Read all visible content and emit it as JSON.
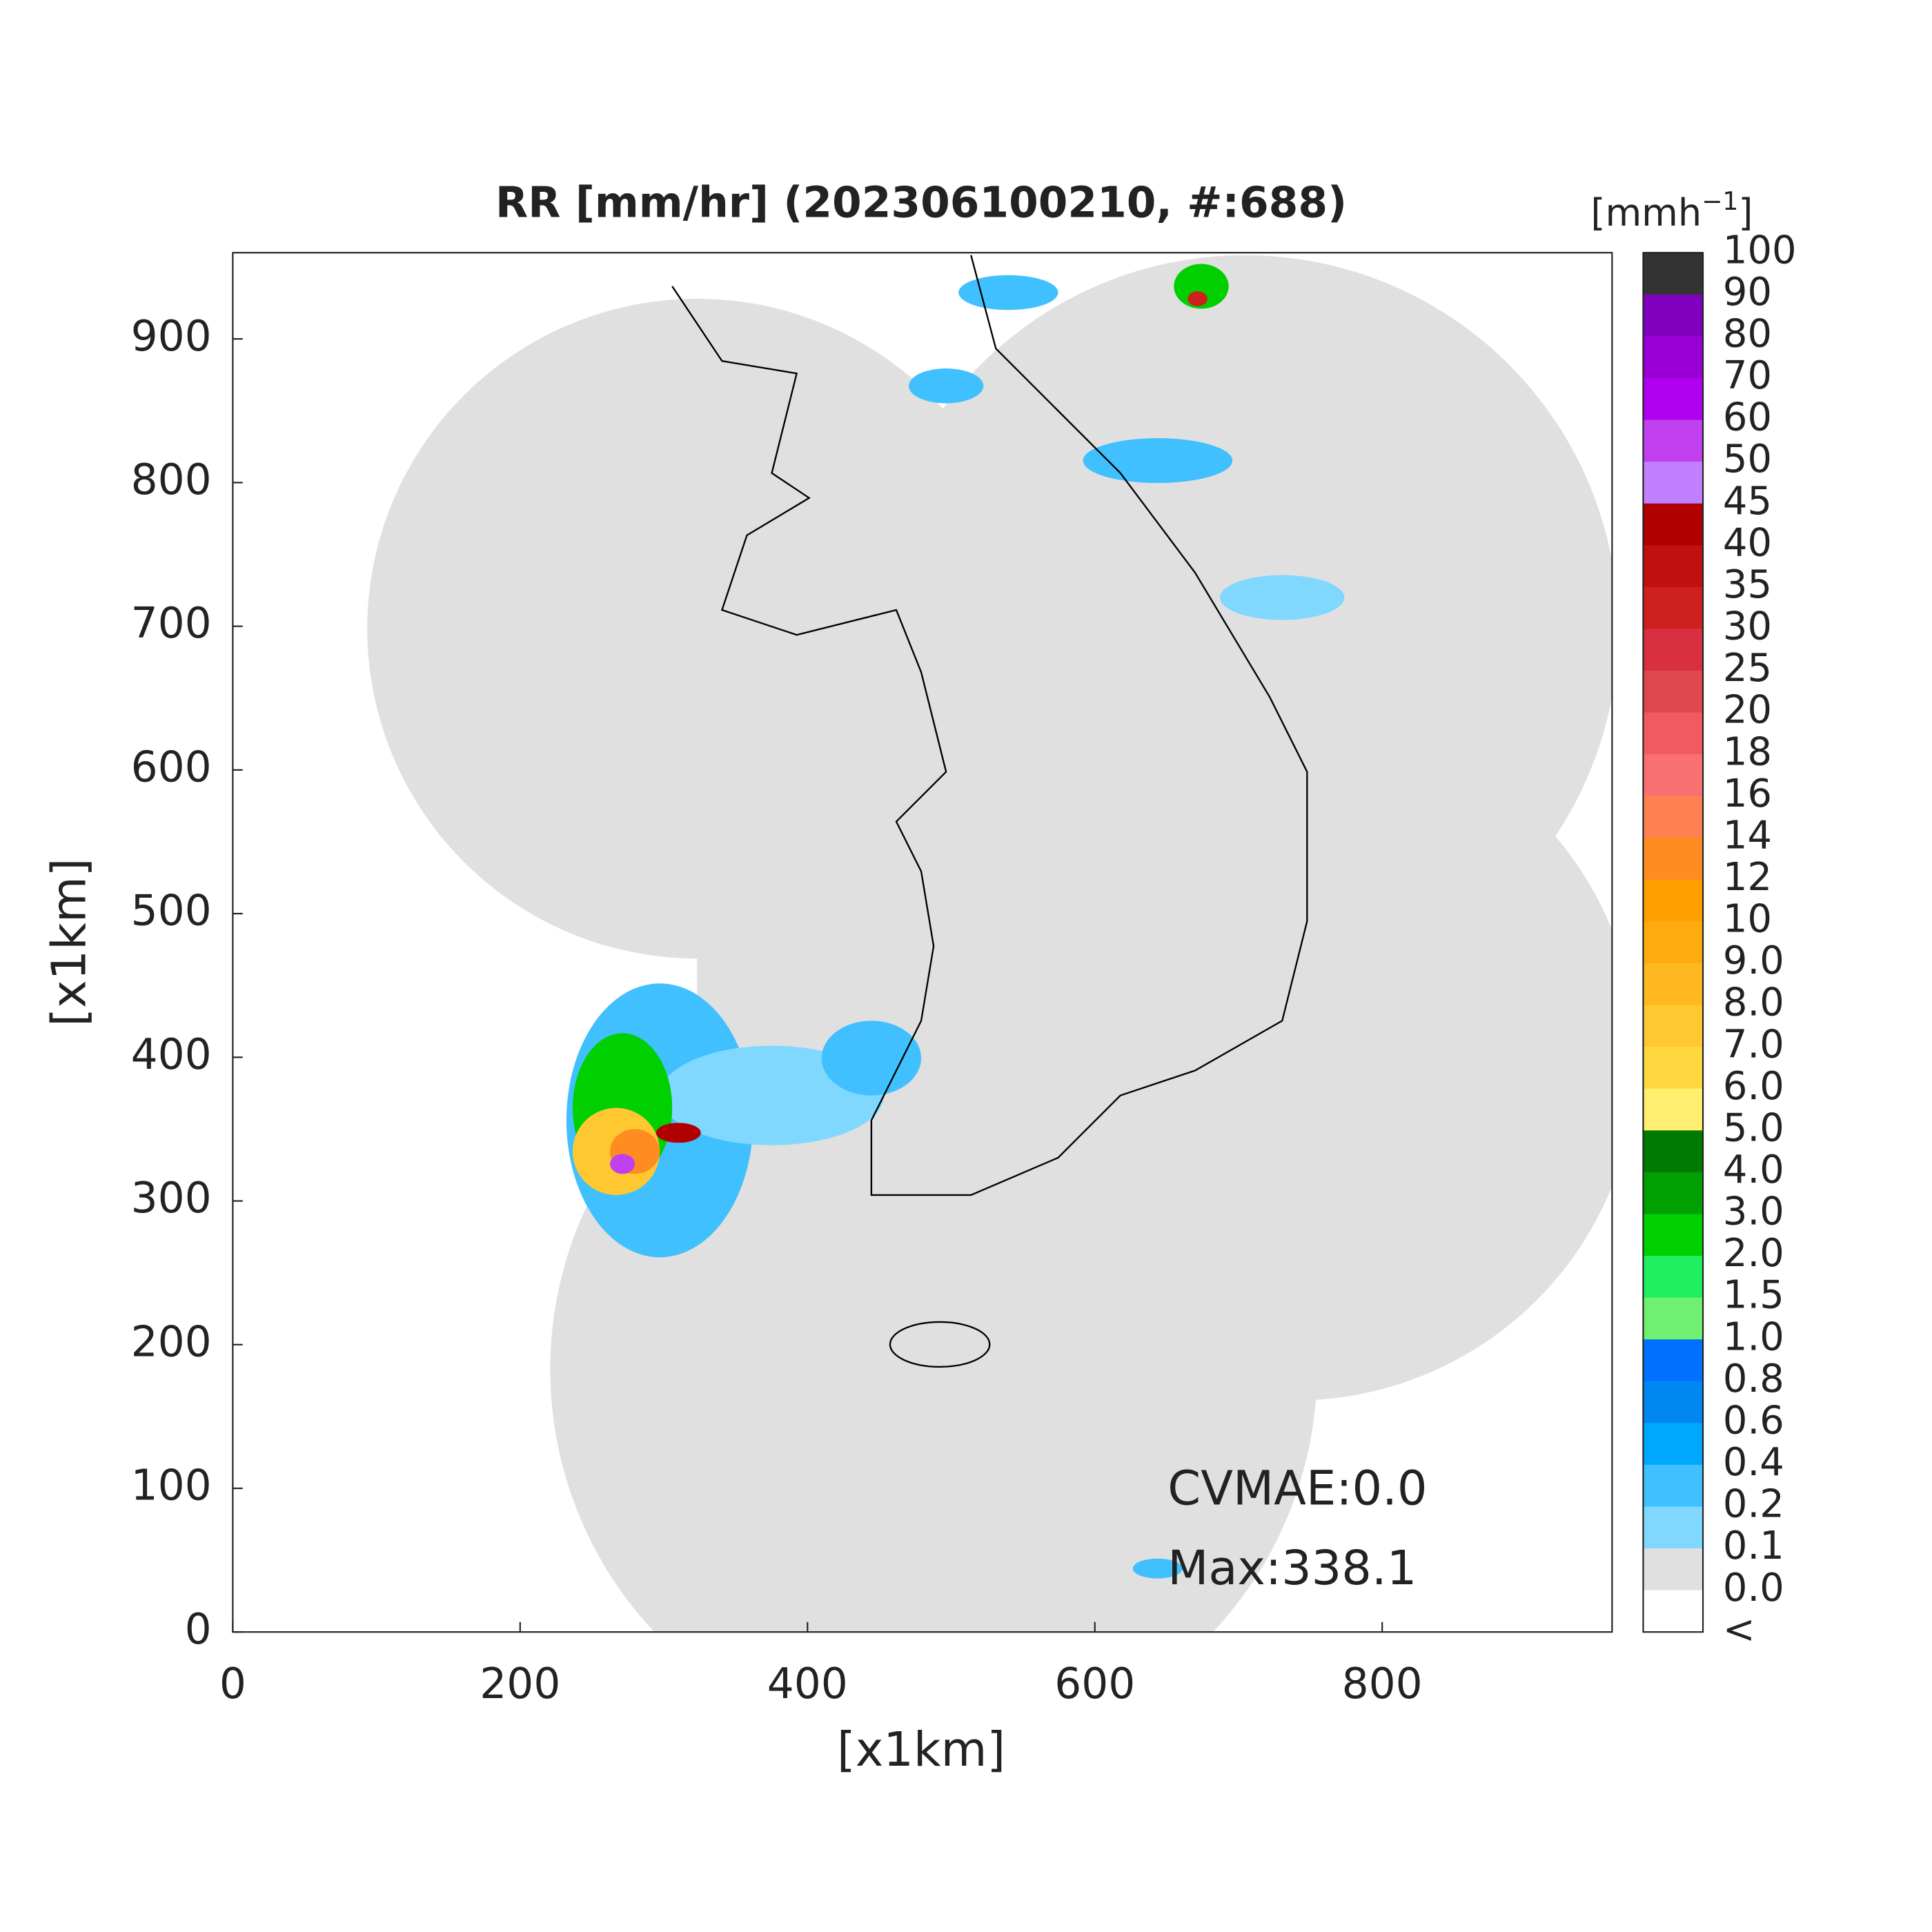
{
  "title": "RR [mm/hr] (202306100210, #:688)",
  "x_axis": {
    "label": "[x1km]",
    "lim": [
      0,
      960
    ],
    "ticks": [
      0,
      200,
      400,
      600,
      800
    ]
  },
  "y_axis": {
    "label": "[x1km]",
    "lim": [
      0,
      960
    ],
    "ticks": [
      0,
      100,
      200,
      300,
      400,
      500,
      600,
      700,
      800,
      900
    ]
  },
  "annotations": [
    "CVMAE:0.0",
    "Max:338.1"
  ],
  "colorbar": {
    "unit_base": "[mmh",
    "unit_sup": "−1",
    "unit_close": "]",
    "labels": [
      "100",
      "90",
      "80",
      "70",
      "60",
      "50",
      "45",
      "40",
      "35",
      "30",
      "25",
      "20",
      "18",
      "16",
      "14",
      "12",
      "10",
      "9.0",
      "8.0",
      "7.0",
      "6.0",
      "5.0",
      "4.0",
      "3.0",
      "2.0",
      "1.5",
      "1.0",
      "0.8",
      "0.6",
      "0.4",
      "0.2",
      "0.1",
      "0.0",
      "<"
    ],
    "colors": [
      "#333333",
      "#7f00bf",
      "#9a00d6",
      "#b000f0",
      "#c040f0",
      "#c080ff",
      "#b00000",
      "#c21010",
      "#cf2020",
      "#d83040",
      "#e04850",
      "#f05a60",
      "#f87070",
      "#ff8050",
      "#ff8c20",
      "#ffa000",
      "#ffab10",
      "#ffb820",
      "#ffc830",
      "#ffd840",
      "#ffee70",
      "#007a00",
      "#00a000",
      "#00d000",
      "#20f060",
      "#70f070",
      "#0070ff",
      "#0088f0",
      "#00a8ff",
      "#40c0ff",
      "#80d8ff",
      "#e0e0e0",
      "#ffffff"
    ]
  }
}
